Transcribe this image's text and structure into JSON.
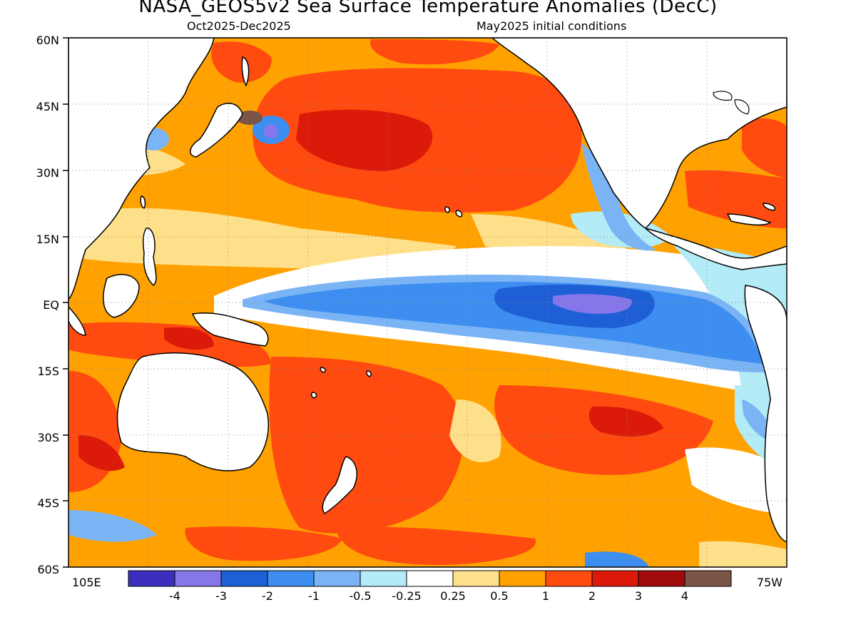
{
  "header": {
    "title": "NASA_GEOS5v2 Sea Surface Temperature Anomalies (DecC)",
    "period": "Oct2025-Dec2025",
    "init": "May2025 initial conditions"
  },
  "axes": {
    "lat_labels": [
      "60N",
      "45N",
      "30N",
      "15N",
      "EQ",
      "15S",
      "30S",
      "45S",
      "60S"
    ],
    "lon_left": "105E",
    "lon_right": "75W"
  },
  "colorbar": {
    "levels": [
      "-4",
      "-3",
      "-2",
      "-1",
      "-0.5",
      "-0.25",
      "0.25",
      "0.5",
      "1",
      "2",
      "3",
      "4"
    ],
    "colors": [
      "#3c2fbf",
      "#8577ea",
      "#1f5fd6",
      "#3d8ef0",
      "#7ab4f5",
      "#b3ebf7",
      "#ffffff",
      "#ffe08a",
      "#ffa100",
      "#ff4a10",
      "#dc1a0a",
      "#a10b0b",
      "#7a5548"
    ]
  }
}
